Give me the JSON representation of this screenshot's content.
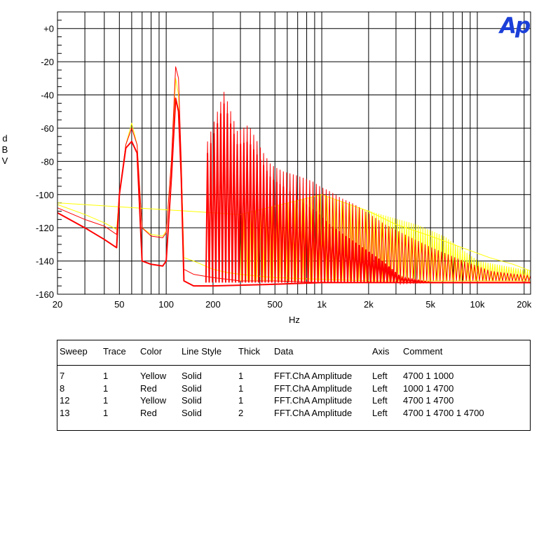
{
  "chart_data": {
    "type": "line",
    "logo": "Ap",
    "xlabel": "Hz",
    "ylabel": [
      "d",
      "B",
      "V"
    ],
    "x_scale": "log",
    "xlim": [
      20,
      22000
    ],
    "ylim": [
      -160,
      10
    ],
    "grid": true,
    "x_ticks": [
      {
        "value": 20,
        "label": "20"
      },
      {
        "value": 50,
        "label": "50"
      },
      {
        "value": 100,
        "label": "100"
      },
      {
        "value": 200,
        "label": "200"
      },
      {
        "value": 500,
        "label": "500"
      },
      {
        "value": 1000,
        "label": "1k"
      },
      {
        "value": 2000,
        "label": "2k"
      },
      {
        "value": 5000,
        "label": "5k"
      },
      {
        "value": 10000,
        "label": "10k"
      },
      {
        "value": 20000,
        "label": "20k"
      }
    ],
    "y_ticks": [
      {
        "value": 0,
        "label": "+0"
      },
      {
        "value": -20,
        "label": "-20"
      },
      {
        "value": -40,
        "label": "-40"
      },
      {
        "value": -60,
        "label": "-60"
      },
      {
        "value": -80,
        "label": "-80"
      },
      {
        "value": -100,
        "label": "-100"
      },
      {
        "value": -120,
        "label": "-120"
      },
      {
        "value": -140,
        "label": "-140"
      },
      {
        "value": -160,
        "label": "-160"
      }
    ],
    "series": [
      {
        "color": "#ffff00",
        "width": 1,
        "values": [
          [
            20,
            -106
          ],
          [
            30,
            -112
          ],
          [
            40,
            -117
          ],
          [
            48,
            -121
          ],
          [
            50,
            -100
          ],
          [
            55,
            -70
          ],
          [
            60,
            -57
          ],
          [
            65,
            -70
          ],
          [
            70,
            -120
          ],
          [
            80,
            -124
          ],
          [
            95,
            -125
          ],
          [
            100,
            -122
          ],
          [
            108,
            -80
          ],
          [
            115,
            -30
          ],
          [
            120,
            -40
          ],
          [
            125,
            -80
          ],
          [
            130,
            -138
          ],
          [
            150,
            -140
          ],
          [
            200,
            -145
          ],
          [
            250,
            -147
          ],
          [
            300,
            -148
          ],
          [
            500,
            -150
          ],
          [
            1000,
            -151
          ],
          [
            2000,
            -152
          ],
          [
            5000,
            -152
          ],
          [
            10000,
            -152
          ],
          [
            22000,
            -152
          ]
        ]
      },
      {
        "color": "#ff0000",
        "width": 1,
        "values": [
          [
            20,
            -108
          ],
          [
            30,
            -115
          ],
          [
            40,
            -119
          ],
          [
            48,
            -124
          ],
          [
            50,
            -100
          ],
          [
            55,
            -70
          ],
          [
            60,
            -60
          ],
          [
            65,
            -70
          ],
          [
            70,
            -120
          ],
          [
            80,
            -125
          ],
          [
            95,
            -126
          ],
          [
            100,
            -123
          ],
          [
            108,
            -80
          ],
          [
            115,
            -23
          ],
          [
            120,
            -30
          ],
          [
            125,
            -80
          ],
          [
            130,
            -145
          ],
          [
            150,
            -148
          ],
          [
            200,
            -150
          ],
          [
            300,
            -152
          ],
          [
            500,
            -152
          ],
          [
            1000,
            -153
          ],
          [
            2000,
            -153
          ],
          [
            5000,
            -153
          ],
          [
            10000,
            -153
          ],
          [
            22000,
            -153
          ]
        ]
      },
      {
        "color": "#ffff00",
        "width": 1,
        "values": [
          [
            20,
            -105
          ],
          [
            300,
            -112
          ],
          [
            1000,
            -100
          ],
          [
            2000,
            -110
          ],
          [
            3000,
            -118
          ],
          [
            5000,
            -125
          ],
          [
            8000,
            -132
          ],
          [
            12000,
            -138
          ],
          [
            17000,
            -142
          ],
          [
            22000,
            -146
          ]
        ]
      },
      {
        "color": "#ff0000",
        "width": 2,
        "values": [
          [
            20,
            -111
          ],
          [
            30,
            -120
          ],
          [
            40,
            -127
          ],
          [
            48,
            -132
          ],
          [
            50,
            -100
          ],
          [
            55,
            -72
          ],
          [
            60,
            -68
          ],
          [
            65,
            -75
          ],
          [
            70,
            -140
          ],
          [
            80,
            -142
          ],
          [
            95,
            -143
          ],
          [
            100,
            -140
          ],
          [
            108,
            -90
          ],
          [
            115,
            -42
          ],
          [
            120,
            -50
          ],
          [
            125,
            -90
          ],
          [
            130,
            -152
          ],
          [
            150,
            -155
          ],
          [
            200,
            -155
          ],
          [
            500,
            -154
          ],
          [
            1000,
            -153
          ],
          [
            2000,
            -153
          ],
          [
            5000,
            -153
          ],
          [
            10000,
            -153
          ],
          [
            22000,
            -153
          ]
        ]
      }
    ],
    "envelopes": [
      {
        "color": "#ffff00",
        "width": 1,
        "peaks": [
          [
            300,
            -112
          ],
          [
            1000,
            -100
          ],
          [
            2000,
            -110
          ],
          [
            4000,
            -118
          ],
          [
            6000,
            -125
          ],
          [
            10000,
            -140
          ],
          [
            22000,
            -146
          ]
        ]
      },
      {
        "color": "#ff0000",
        "width": 1,
        "peaks": [
          [
            180,
            -68
          ],
          [
            230,
            -38
          ],
          [
            280,
            -62
          ],
          [
            330,
            -58
          ],
          [
            400,
            -73
          ],
          [
            460,
            -82
          ],
          [
            550,
            -86
          ],
          [
            650,
            -88
          ],
          [
            750,
            -90
          ],
          [
            850,
            -92
          ],
          [
            950,
            -95
          ],
          [
            1100,
            -98
          ],
          [
            1300,
            -102
          ],
          [
            1600,
            -106
          ],
          [
            2000,
            -112
          ],
          [
            2500,
            -118
          ],
          [
            3500,
            -125
          ],
          [
            5000,
            -132
          ],
          [
            8000,
            -140
          ],
          [
            12000,
            -146
          ],
          [
            22000,
            -149
          ]
        ]
      },
      {
        "color": "#ff0000",
        "width": 2,
        "peaks": [
          [
            180,
            -75
          ],
          [
            230,
            -45
          ],
          [
            280,
            -70
          ],
          [
            330,
            -68
          ],
          [
            400,
            -80
          ],
          [
            460,
            -90
          ],
          [
            550,
            -95
          ],
          [
            650,
            -100
          ],
          [
            750,
            -105
          ],
          [
            900,
            -110
          ],
          [
            1100,
            -118
          ],
          [
            1400,
            -125
          ],
          [
            1800,
            -132
          ],
          [
            2400,
            -140
          ],
          [
            3200,
            -150
          ],
          [
            5000,
            -153
          ],
          [
            22000,
            -153
          ]
        ]
      }
    ]
  },
  "legend": {
    "headers": [
      "Sweep",
      "Trace",
      "Color",
      "Line Style",
      "Thick",
      "Data",
      "Axis",
      "Comment"
    ],
    "rows": [
      [
        "7",
        "1",
        "Yellow",
        "Solid",
        "1",
        "FFT.ChA Amplitude",
        "Left",
        "4700 1 1000"
      ],
      [
        "8",
        "1",
        "Red",
        "Solid",
        "1",
        "FFT.ChA Amplitude",
        "Left",
        "1000 1 4700"
      ],
      [
        "12",
        "1",
        "Yellow",
        "Solid",
        "1",
        "FFT.ChA Amplitude",
        "Left",
        "4700 1 4700"
      ],
      [
        "13",
        "1",
        "Red",
        "Solid",
        "2",
        "FFT.ChA Amplitude",
        "Left",
        "4700 1 4700 1 4700"
      ]
    ]
  }
}
